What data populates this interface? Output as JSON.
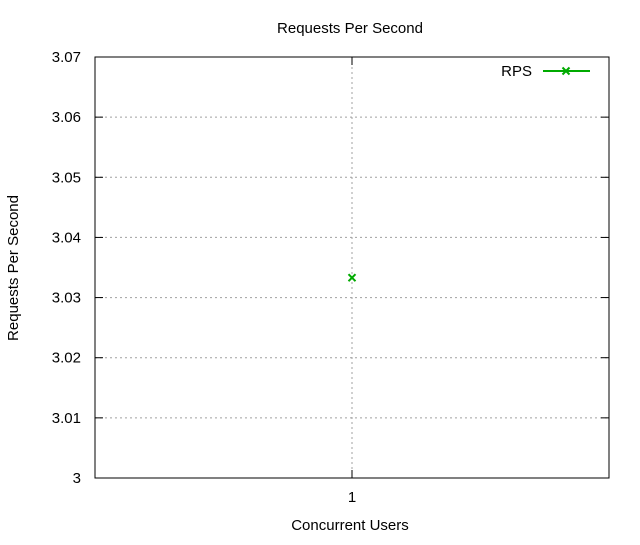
{
  "chart_data": {
    "type": "scatter",
    "title": "Requests Per Second",
    "xlabel": "Concurrent Users",
    "ylabel": "Requests Per Second",
    "x_ticks": [
      1
    ],
    "y_ticks": [
      3,
      3.01,
      3.02,
      3.03,
      3.04,
      3.05,
      3.06,
      3.07
    ],
    "y_tick_labels": [
      "3",
      "3.01",
      "3.02",
      "3.03",
      "3.04",
      "3.05",
      "3.06",
      "3.07"
    ],
    "xlim": [
      0,
      2
    ],
    "ylim": [
      3,
      3.07
    ],
    "grid": true,
    "legend_position": "top-right",
    "series": [
      {
        "name": "RPS",
        "color": "#00aa00",
        "marker": "x",
        "points": [
          {
            "x": 1,
            "y": 3.0333
          }
        ]
      }
    ]
  }
}
